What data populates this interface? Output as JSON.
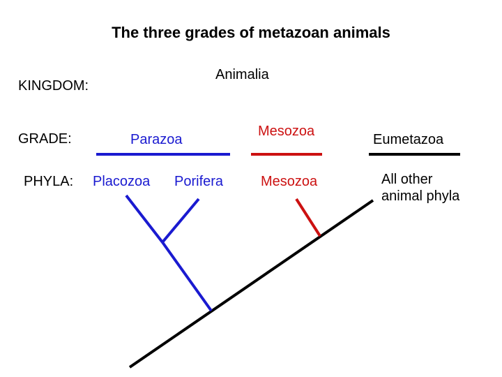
{
  "title": "The three grades of metazoan animals",
  "kingdom": {
    "label": "KINGDOM:",
    "value": "Animalia"
  },
  "grade": {
    "label": "GRADE:",
    "items": [
      "Parazoa",
      "Mesozoa",
      "Eumetazoa"
    ]
  },
  "phyla": {
    "label": "PHYLA:",
    "placozoa": "Placozoa",
    "porifera": "Porifera",
    "mesozoa": "Mesozoa",
    "other_line1": "All other",
    "other_line2": "animal phyla"
  },
  "colors": {
    "parazoa": "#1a1ad0",
    "mesozoa": "#cc1111",
    "eumetazoa": "#000000"
  }
}
